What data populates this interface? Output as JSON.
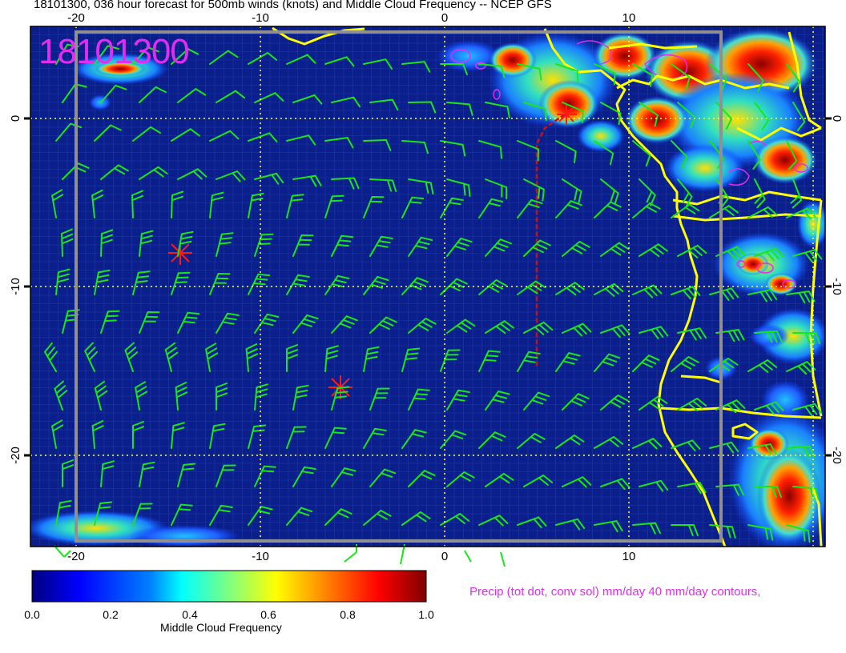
{
  "title": "18101300, 036 hour forecast for 500mb winds (knots) and Middle Cloud Frequency -- NCEP GFS",
  "stamp": "18101300",
  "precip_note": "Precip (tot dot, conv sol) mm/day 40 mm/day contours,",
  "map": {
    "lon_range": [
      -22.5,
      20.5
    ],
    "lat_range": [
      -25.2,
      5.3
    ],
    "lon_ticks": [
      "-20",
      "-10",
      "0",
      "10"
    ],
    "lat_ticks": [
      "0",
      "-10",
      "-20"
    ],
    "colors": {
      "ocean_field": "#0a1f8c",
      "coastline": "#ffff00",
      "wind_barbs": "#19e619",
      "gridlines": "#ffff33",
      "storm_markers": "#ff1a1a",
      "track_line": "#cc1010",
      "precip_contours": "#e42cf0",
      "frame": "#909090"
    }
  },
  "colorbar": {
    "label": "Middle Cloud Frequency",
    "ticks": [
      "0.0",
      "0.2",
      "0.4",
      "0.6",
      "0.8",
      "1.0"
    ],
    "stops": [
      "#00007f",
      "#0000ff",
      "#0080ff",
      "#00ffff",
      "#80ff80",
      "#ffff00",
      "#ff8000",
      "#ff0000",
      "#7f0000"
    ]
  }
}
